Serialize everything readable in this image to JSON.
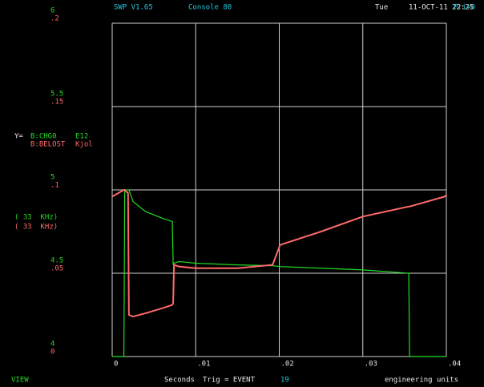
{
  "header": {
    "program": "SWP V1.65",
    "console": "Console 80",
    "day": "Tue",
    "datetime": "11-OCT-11 22:25",
    "priority": "Pri=0"
  },
  "footer": {
    "mode": "VIEW",
    "trigger": "Trig = EVENT",
    "event": "19",
    "units": "engineering units"
  },
  "chart_data": {
    "type": "line",
    "y_prefix": "Y=",
    "x_label": "Seconds",
    "annotations": [
      {
        "text": "( 33  KHz)",
        "color": "#22dd22"
      },
      {
        "text": "( 33  KHz)",
        "color": "#ff6a6a"
      }
    ],
    "x": [
      0,
      0.0014,
      0.0015,
      0.0019,
      0.002,
      0.0025,
      0.004,
      0.006,
      0.0072,
      0.0073,
      0.0074,
      0.008,
      0.01,
      0.015,
      0.0192,
      0.0201,
      0.025,
      0.03,
      0.0355,
      0.0356,
      0.0398,
      0.04
    ],
    "series": [
      {
        "name": "B:CHG0",
        "unit": "E12",
        "color": "#22dd22",
        "axis": "y",
        "values": [
          4,
          4,
          5,
          5,
          5,
          4.93,
          4.87,
          4.83,
          4.81,
          4.55,
          4.56,
          4.57,
          4.56,
          4.55,
          4.545,
          4.54,
          4.53,
          4.52,
          4.5,
          4,
          4,
          4
        ]
      },
      {
        "name": "B:BELOST",
        "unit": "Kjol",
        "color": "#ff6a6a",
        "axis": "y2",
        "values": [
          0.096,
          0.1,
          0.1,
          0.098,
          0.025,
          0.024,
          0.026,
          0.029,
          0.031,
          0.032,
          0.055,
          0.054,
          0.053,
          0.053,
          0.055,
          0.067,
          0.075,
          0.084,
          0.09,
          0.09,
          0.096,
          0.097
        ]
      }
    ],
    "xlim": [
      0,
      0.04
    ],
    "xticks": [
      0,
      {
        "value": 0.01,
        "label": ".01"
      },
      {
        "value": 0.02,
        "label": ".02"
      },
      {
        "value": 0.03,
        "label": ".03"
      },
      {
        "value": 0.04,
        "label": ".04"
      }
    ],
    "ylim": [
      4,
      6
    ],
    "yticks": [
      4,
      4.5,
      5,
      5.5,
      6
    ],
    "y2lim": [
      0,
      0.2
    ],
    "y2ticks": [
      0,
      {
        "value": 0.05,
        "label": ".05"
      },
      {
        "value": 0.1,
        "label": ".1"
      },
      {
        "value": 0.15,
        "label": ".15"
      },
      {
        "value": 0.2,
        "label": ".2"
      }
    ],
    "grid": true
  }
}
